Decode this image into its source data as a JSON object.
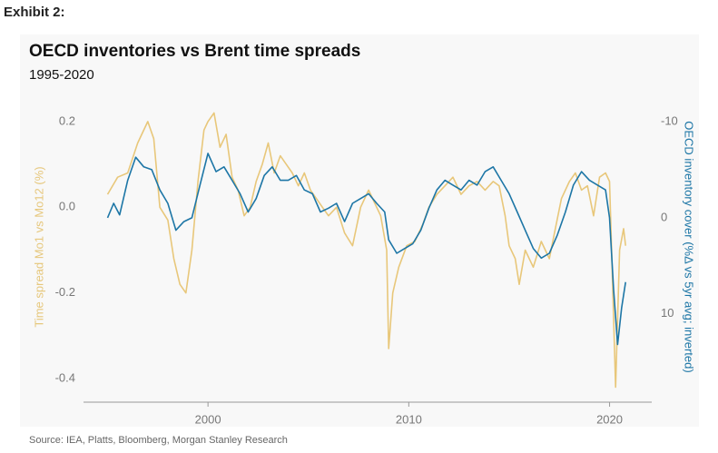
{
  "exhibit": "Exhibit 2:",
  "source": "Source: IEA, Platts, Bloomberg, Morgan Stanley Research",
  "chart_data": {
    "type": "line",
    "title": "OECD inventories vs Brent time spreads",
    "subtitle": "1995-2020",
    "ylabel": "Time spread Mo1 vs Mo12 (%)",
    "y2label": "OECD inventory cover (%Δ vs 5yr avg; inverted)",
    "xlim": [
      1993.8,
      2022.1
    ],
    "xticks": [
      2000,
      2010,
      2020
    ],
    "ylim": [
      -0.455,
      0.24
    ],
    "yticks": [
      0.2,
      {
        "value": 0,
        "label": "0.0"
      },
      -0.2,
      -0.4
    ],
    "y2lim": [
      -11.8,
      19.2
    ],
    "y2ticks": [
      -10,
      0,
      10
    ],
    "y2_inverted": true,
    "ylabel_color": "#e6c77c",
    "y2label_color": "#1d76a6",
    "series": [
      {
        "color": "#e8c77a",
        "axis": "y",
        "x": [
          1995.0,
          1995.5,
          1996.0,
          1996.5,
          1997.0,
          1997.3,
          1997.6,
          1998.0,
          1998.3,
          1998.6,
          1998.9,
          1999.2,
          1999.5,
          1999.8,
          2000.0,
          2000.3,
          2000.6,
          2000.9,
          2001.2,
          2001.5,
          2001.8,
          2002.1,
          2002.4,
          2002.7,
          2003.0,
          2003.3,
          2003.6,
          2003.9,
          2004.2,
          2004.5,
          2004.8,
          2005.1,
          2005.4,
          2005.7,
          2006.0,
          2006.4,
          2006.8,
          2007.2,
          2007.6,
          2008.0,
          2008.3,
          2008.6,
          2008.9,
          2009.0,
          2009.2,
          2009.5,
          2009.9,
          2010.3,
          2010.7,
          2011.0,
          2011.4,
          2011.8,
          2012.2,
          2012.6,
          2013.0,
          2013.4,
          2013.8,
          2014.2,
          2014.5,
          2014.8,
          2015.0,
          2015.3,
          2015.5,
          2015.8,
          2016.2,
          2016.6,
          2017.0,
          2017.3,
          2017.6,
          2018.0,
          2018.3,
          2018.6,
          2018.9,
          2019.2,
          2019.5,
          2019.8,
          2020.0,
          2020.1,
          2020.3,
          2020.5,
          2020.7,
          2020.8
        ],
        "values": [
          0.03,
          0.07,
          0.08,
          0.15,
          0.2,
          0.16,
          0.0,
          -0.03,
          -0.12,
          -0.18,
          -0.2,
          -0.1,
          0.06,
          0.18,
          0.2,
          0.22,
          0.14,
          0.17,
          0.07,
          0.04,
          -0.02,
          0.0,
          0.06,
          0.1,
          0.15,
          0.08,
          0.12,
          0.1,
          0.08,
          0.05,
          0.08,
          0.04,
          0.02,
          0.0,
          -0.02,
          0.0,
          -0.06,
          -0.09,
          0.0,
          0.04,
          0.01,
          -0.02,
          -0.1,
          -0.33,
          -0.2,
          -0.14,
          -0.09,
          -0.08,
          -0.04,
          0.0,
          0.03,
          0.05,
          0.07,
          0.03,
          0.05,
          0.06,
          0.04,
          0.06,
          0.05,
          -0.02,
          -0.09,
          -0.12,
          -0.18,
          -0.1,
          -0.14,
          -0.08,
          -0.12,
          -0.05,
          0.02,
          0.06,
          0.08,
          0.04,
          0.05,
          -0.02,
          0.07,
          0.08,
          0.06,
          -0.1,
          -0.42,
          -0.1,
          -0.05,
          -0.09
        ]
      },
      {
        "color": "#1d76a6",
        "axis": "y2",
        "x": [
          1995.0,
          1995.3,
          1995.6,
          1996.0,
          1996.4,
          1996.8,
          1997.2,
          1997.6,
          1998.0,
          1998.4,
          1998.8,
          1999.2,
          1999.6,
          2000.0,
          2000.4,
          2000.8,
          2001.2,
          2001.6,
          2002.0,
          2002.4,
          2002.8,
          2003.2,
          2003.6,
          2004.0,
          2004.4,
          2004.8,
          2005.2,
          2005.6,
          2006.0,
          2006.4,
          2006.8,
          2007.2,
          2007.6,
          2008.0,
          2008.4,
          2008.8,
          2009.0,
          2009.4,
          2009.8,
          2010.2,
          2010.6,
          2011.0,
          2011.4,
          2011.8,
          2012.2,
          2012.6,
          2013.0,
          2013.4,
          2013.8,
          2014.2,
          2014.6,
          2015.0,
          2015.4,
          2015.8,
          2016.2,
          2016.6,
          2017.0,
          2017.4,
          2017.8,
          2018.2,
          2018.6,
          2019.0,
          2019.4,
          2019.8,
          2020.0,
          2020.2,
          2020.4,
          2020.6,
          2020.8
        ],
        "values": [
          0,
          -1.5,
          -0.3,
          -3.9,
          -6.3,
          -5.3,
          -5,
          -2.9,
          -1.5,
          1.3,
          0.4,
          0,
          -3.4,
          -6.7,
          -4.8,
          -5.3,
          -3.9,
          -2.5,
          -0.6,
          -2,
          -4.4,
          -5.3,
          -3.9,
          -3.9,
          -4.4,
          -2.9,
          -2.5,
          -0.6,
          -1,
          -1.5,
          0.4,
          -1.5,
          -2,
          -2.5,
          -1.5,
          -0.6,
          2.3,
          3.7,
          3.2,
          2.7,
          1.3,
          -1,
          -2.9,
          -3.9,
          -3.4,
          -2.9,
          -3.9,
          -3.4,
          -4.8,
          -5.3,
          -3.9,
          -2.5,
          -0.6,
          1.3,
          3.2,
          4.2,
          3.7,
          1.8,
          -0.6,
          -3.4,
          -4.8,
          -3.9,
          -3.4,
          -2.9,
          0,
          7.5,
          13.2,
          9.4,
          6.7
        ]
      }
    ]
  }
}
